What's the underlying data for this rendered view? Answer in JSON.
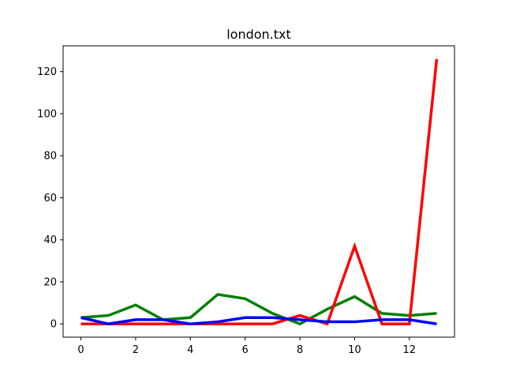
{
  "chart_data": {
    "type": "line",
    "title": "london.txt",
    "xlabel": "",
    "ylabel": "",
    "x": [
      0,
      1,
      2,
      3,
      4,
      5,
      6,
      7,
      8,
      9,
      10,
      11,
      12,
      13
    ],
    "xlim": [
      -0.65,
      13.65
    ],
    "ylim": [
      -6.3,
      132.3
    ],
    "xticks": [
      0,
      2,
      4,
      6,
      8,
      10,
      12
    ],
    "yticks": [
      0,
      20,
      40,
      60,
      80,
      100,
      120
    ],
    "grid": false,
    "series": [
      {
        "color": "#008000",
        "values": [
          3,
          4,
          9,
          2,
          3,
          14,
          12,
          5,
          0,
          7,
          13,
          5,
          4,
          5
        ]
      },
      {
        "color": "#ff0000",
        "values": [
          0,
          0,
          0,
          0,
          0,
          0,
          0,
          0,
          4,
          0,
          37,
          0,
          0,
          126
        ]
      },
      {
        "color": "#0000ff",
        "values": [
          3,
          0,
          2,
          2,
          0,
          1,
          3,
          3,
          2,
          1,
          1,
          2,
          2,
          0
        ]
      }
    ]
  }
}
